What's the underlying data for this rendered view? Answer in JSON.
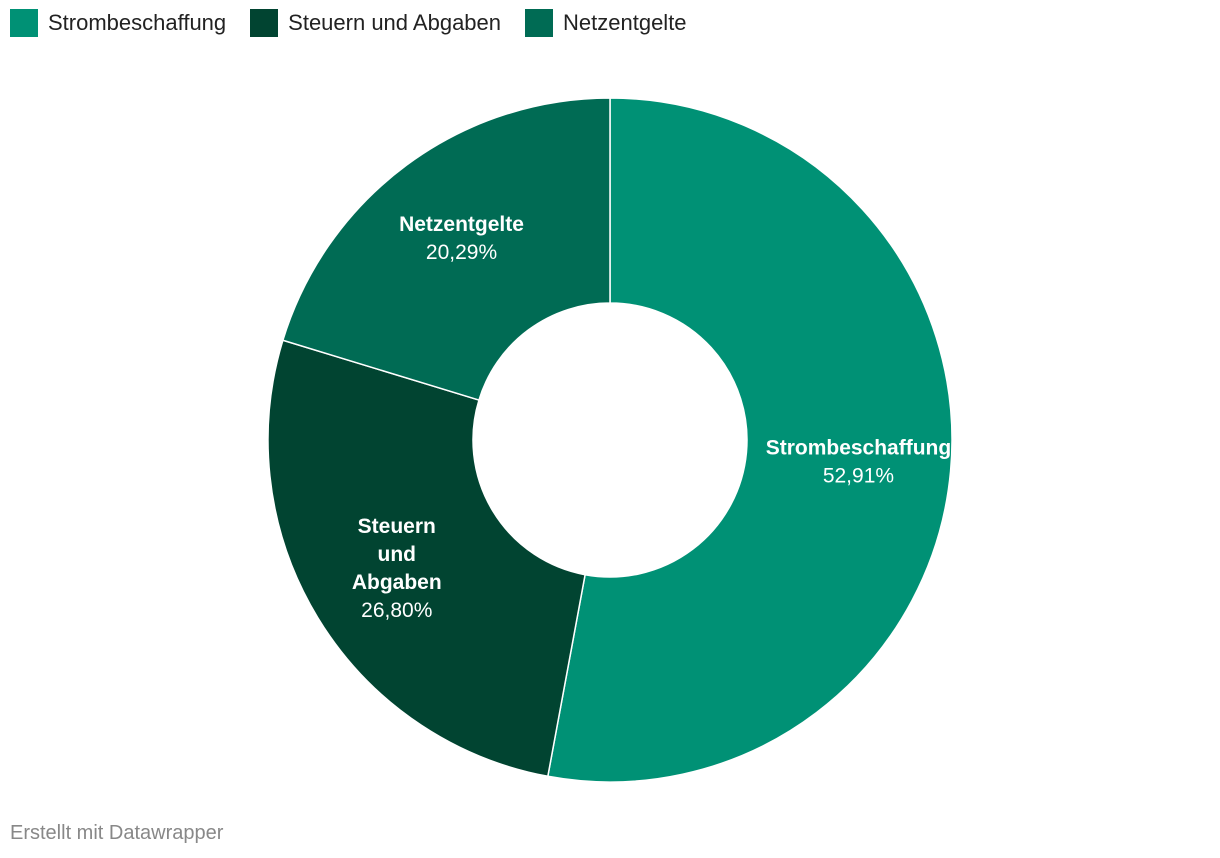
{
  "chart_data": {
    "type": "pie",
    "variant": "donut",
    "categories": [
      "Strombeschaffung",
      "Steuern und Abgaben",
      "Netzentgelte"
    ],
    "values": [
      52.91,
      26.8,
      20.29
    ],
    "value_labels": [
      "52,91%",
      "26,80%",
      "20,29%"
    ],
    "colors": [
      "#009175",
      "#014431",
      "#006b54"
    ],
    "unit": "%",
    "legend_position": "top-left"
  },
  "legend": {
    "items": [
      {
        "label": "Strombeschaffung",
        "color": "#009175"
      },
      {
        "label": "Steuern und Abgaben",
        "color": "#014431"
      },
      {
        "label": "Netzentgelte",
        "color": "#006b54"
      }
    ]
  },
  "slice_labels": [
    {
      "lines": [
        "Strombeschaffung"
      ],
      "value": "52,91%"
    },
    {
      "lines": [
        "Steuern",
        "und",
        "Abgaben"
      ],
      "value": "26,80%"
    },
    {
      "lines": [
        "Netzentgelte"
      ],
      "value": "20,29%"
    }
  ],
  "footer": {
    "credit": "Erstellt mit Datawrapper"
  }
}
